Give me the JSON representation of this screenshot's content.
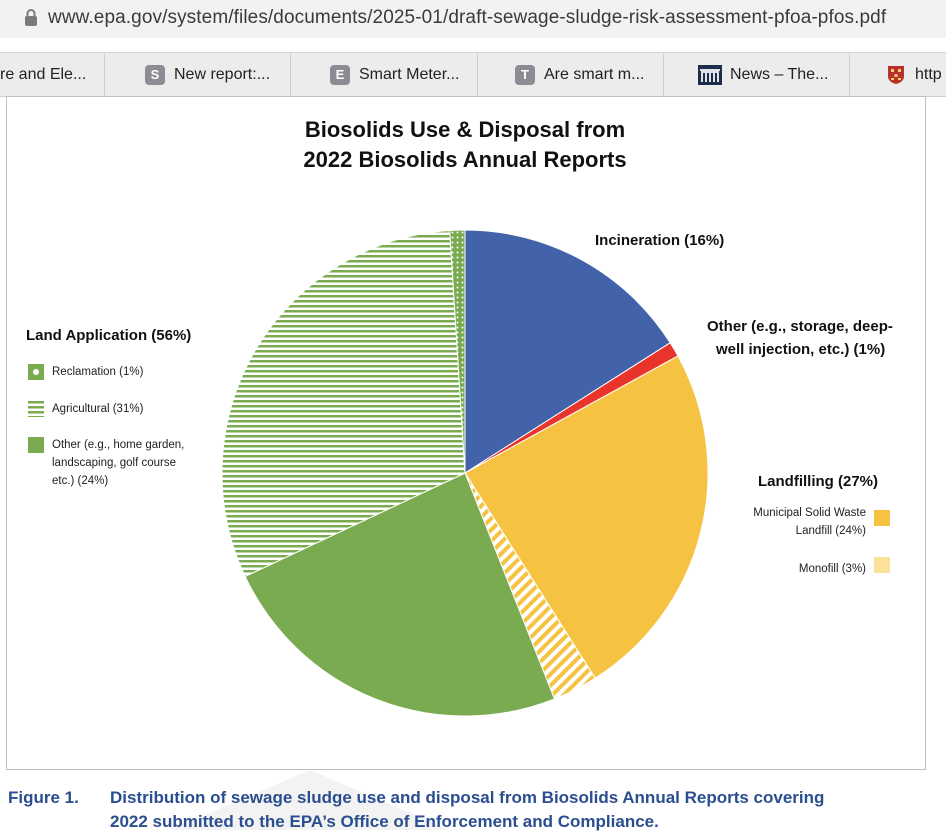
{
  "browser": {
    "url": "www.epa.gov/system/files/documents/2025-01/draft-sewage-sludge-risk-assessment-pfoa-pfos.pdf",
    "tabs": [
      {
        "label": "re and Ele...",
        "icon": "none"
      },
      {
        "label": "New report:...",
        "icon": "S"
      },
      {
        "label": "Smart Meter...",
        "icon": "E"
      },
      {
        "label": "Are smart m...",
        "icon": "T"
      },
      {
        "label": "News – The...",
        "icon": "building-icon"
      },
      {
        "label": "http",
        "icon": "crest-icon"
      }
    ]
  },
  "chart_data": {
    "type": "pie",
    "title_line1": "Biosolids Use & Disposal from",
    "title_line2": "2022 Biosolids Annual Reports",
    "slices": [
      {
        "name": "Incineration",
        "value": 16,
        "color": "#4262aa",
        "pattern": "solid"
      },
      {
        "name": "Other (e.g., storage, deep-well injection, etc.)",
        "value": 1,
        "color": "#e8342a",
        "pattern": "solid"
      },
      {
        "name": "Municipal Solid Waste Landfill",
        "value": 24,
        "color": "#f5c242",
        "pattern": "solid"
      },
      {
        "name": "Monofill",
        "value": 3,
        "color": "#f5c242",
        "pattern": "diagonal"
      },
      {
        "name": "Other (e.g., home garden, landscaping, golf course etc.)",
        "value": 24,
        "color": "#7aab51",
        "pattern": "solid"
      },
      {
        "name": "Agricultural",
        "value": 31,
        "color": "#7aab51",
        "pattern": "horizontal"
      },
      {
        "name": "Reclamation",
        "value": 1,
        "color": "#7aab51",
        "pattern": "dots"
      }
    ],
    "labels": {
      "incineration": "Incineration (16%)",
      "other_line1": "Other (e.g., storage, deep-",
      "other_line2": "well injection, etc.) (1%)",
      "landfilling": "Landfilling (27%)",
      "msw_line1": "Municipal Solid Waste",
      "msw_line2": "Landfill (24%)",
      "monofill": "Monofill (3%)",
      "land_application": "Land Application (56%)",
      "reclamation": "Reclamation (1%)",
      "agricultural": "Agricultural (31%)",
      "other_land_line1": "Other (e.g., home garden,",
      "other_land_line2": "landscaping, golf course",
      "other_land_line3": "etc.) (24%)"
    }
  },
  "caption": {
    "figure": "Figure 1.",
    "line1": "Distribution of sewage sludge use and disposal from Biosolids Annual Reports covering",
    "line2": "2022 submitted to the EPA’s Office of Enforcement and Compliance."
  }
}
